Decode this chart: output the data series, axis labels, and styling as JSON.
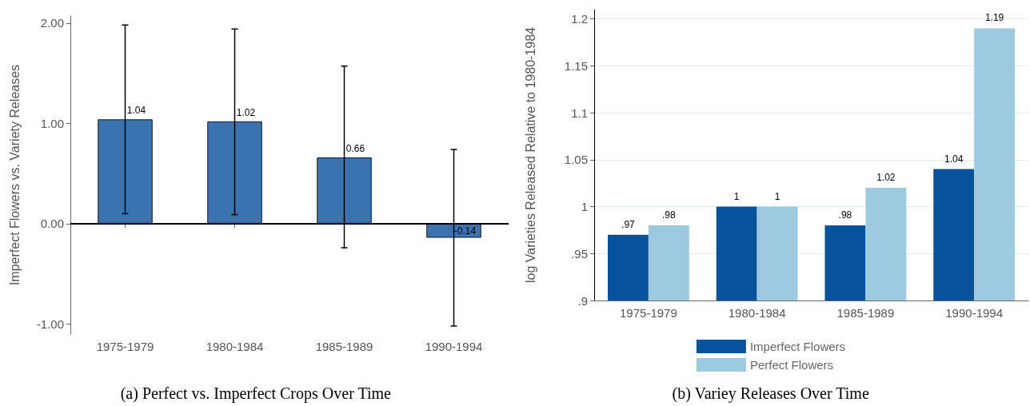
{
  "chart_data": [
    {
      "type": "bar",
      "ylabel": "Imperfect Flowers vs. Variety Releases",
      "categories": [
        "1975-1979",
        "1980-1984",
        "1985-1989",
        "1990-1994"
      ],
      "values": [
        1.04,
        1.02,
        0.66,
        -0.14
      ],
      "color": "#3a73b0",
      "value_labels": [
        "1.04",
        "1.02",
        "0.66",
        "-0.14"
      ],
      "errors": [
        [
          0.1,
          1.98
        ],
        [
          0.09,
          1.94
        ],
        [
          -0.24,
          1.57
        ],
        [
          -1.02,
          0.74
        ]
      ],
      "ylim": [
        -1.1,
        2.07
      ],
      "yticks": [
        {
          "value": -1,
          "label": "-1.00"
        },
        {
          "value": 0,
          "label": "0.00"
        },
        {
          "value": 1,
          "label": "1.00"
        },
        {
          "value": 2,
          "label": "2.00"
        }
      ],
      "ref_lines": [
        {
          "axis": "y",
          "value": 0,
          "color": "#000000"
        }
      ],
      "grid": false,
      "legend": false,
      "annotations": [
        "(a) Perfect vs. Imperfect Crops Over Time"
      ]
    },
    {
      "type": "bar",
      "ylabel": "log Varieties Released Relative to 1980-1984",
      "categories": [
        "1975-1979",
        "1980-1984",
        "1985-1989",
        "1990-1994"
      ],
      "series": [
        {
          "name": "Imperfect Flowers",
          "color": "#08519c",
          "values": [
            0.97,
            1,
            0.98,
            1.04
          ],
          "value_labels": [
            ".97",
            "1",
            ".98",
            "1.04"
          ]
        },
        {
          "name": "Perfect Flowers",
          "color": "#9ecae1",
          "values": [
            0.98,
            1,
            1.02,
            1.19
          ],
          "value_labels": [
            ".98",
            "1",
            "1.02",
            "1.19"
          ]
        }
      ],
      "ylim": [
        0.9,
        1.21
      ],
      "yticks": [
        {
          "value": 0.9,
          "label": ".9"
        },
        {
          "value": 0.95,
          "label": ".95"
        },
        {
          "value": 1,
          "label": "1"
        },
        {
          "value": 1.05,
          "label": "1.05"
        },
        {
          "value": 1.1,
          "label": "1.1"
        },
        {
          "value": 1.15,
          "label": "1.15"
        },
        {
          "value": 1.2,
          "label": "1.2"
        }
      ],
      "grid": "y",
      "legend": "bottom",
      "annotations": [
        "(b) Variey Releases Over Time"
      ]
    }
  ]
}
